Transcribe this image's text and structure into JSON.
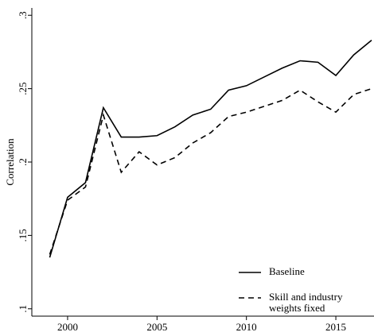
{
  "chart_data": {
    "type": "line",
    "y_label": "Correlation",
    "x": [
      1999,
      2000,
      2001,
      2002,
      2003,
      2004,
      2005,
      2006,
      2007,
      2008,
      2009,
      2010,
      2011,
      2012,
      2013,
      2014,
      2015,
      2016,
      2017
    ],
    "series": [
      {
        "name": "Baseline",
        "color": "#000000",
        "style": "solid",
        "values": [
          0.135,
          0.176,
          0.186,
          0.237,
          0.217,
          0.217,
          0.218,
          0.224,
          0.232,
          0.236,
          0.249,
          0.252,
          0.258,
          0.264,
          0.269,
          0.268,
          0.259,
          0.273,
          0.283
        ]
      },
      {
        "name": "Skill and industry weights fixed",
        "color": "#000000",
        "style": "dashed",
        "values": [
          0.137,
          0.174,
          0.183,
          0.232,
          0.193,
          0.207,
          0.198,
          0.203,
          0.213,
          0.22,
          0.231,
          0.234,
          0.238,
          0.242,
          0.249,
          0.241,
          0.234,
          0.246,
          0.25
        ]
      }
    ],
    "xlim": [
      1998,
      2017
    ],
    "xticks": [
      2000,
      2005,
      2010,
      2015
    ],
    "ylim": [
      0.095,
      0.305
    ],
    "yticks": [
      {
        "value": 0.1,
        "label": ".1"
      },
      {
        "value": 0.15,
        "label": ".15"
      },
      {
        "value": 0.2,
        "label": ".2"
      },
      {
        "value": 0.25,
        "label": ".25"
      },
      {
        "value": 0.3,
        "label": ".3"
      }
    ],
    "grid": false,
    "legend": "lower right"
  }
}
